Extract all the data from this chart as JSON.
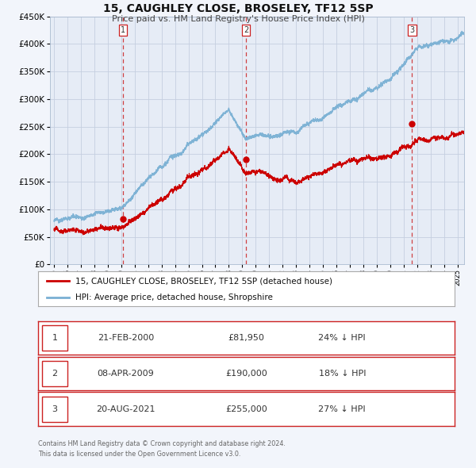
{
  "title": "15, CAUGHLEY CLOSE, BROSELEY, TF12 5SP",
  "subtitle": "Price paid vs. HM Land Registry's House Price Index (HPI)",
  "red_label": "15, CAUGHLEY CLOSE, BROSELEY, TF12 5SP (detached house)",
  "blue_label": "HPI: Average price, detached house, Shropshire",
  "transactions": [
    {
      "num": 1,
      "date": "21-FEB-2000",
      "price": 81950,
      "pct": "24%",
      "dir": "↓",
      "year_x": 2000.12
    },
    {
      "num": 2,
      "date": "08-APR-2009",
      "price": 190000,
      "pct": "18%",
      "dir": "↓",
      "year_x": 2009.27
    },
    {
      "num": 3,
      "date": "20-AUG-2021",
      "price": 255000,
      "pct": "27%",
      "dir": "↓",
      "year_x": 2021.63
    }
  ],
  "ylim": [
    0,
    450000
  ],
  "xlim_start": 1994.7,
  "xlim_end": 2025.5,
  "background_color": "#f2f5fb",
  "plot_bg_color": "#e6ecf6",
  "grid_color": "#c5cfe0",
  "red_line_color": "#cc0000",
  "blue_line_color": "#7ab0d4",
  "red_dot_color": "#cc0000",
  "footnote_line1": "Contains HM Land Registry data © Crown copyright and database right 2024.",
  "footnote_line2": "This data is licensed under the Open Government Licence v3.0.",
  "yticks": [
    0,
    50000,
    100000,
    150000,
    200000,
    250000,
    300000,
    350000,
    400000,
    450000
  ],
  "xticks": [
    1995,
    1996,
    1997,
    1998,
    1999,
    2000,
    2001,
    2002,
    2003,
    2004,
    2005,
    2006,
    2007,
    2008,
    2009,
    2010,
    2011,
    2012,
    2013,
    2014,
    2015,
    2016,
    2017,
    2018,
    2019,
    2020,
    2021,
    2022,
    2023,
    2024,
    2025
  ]
}
